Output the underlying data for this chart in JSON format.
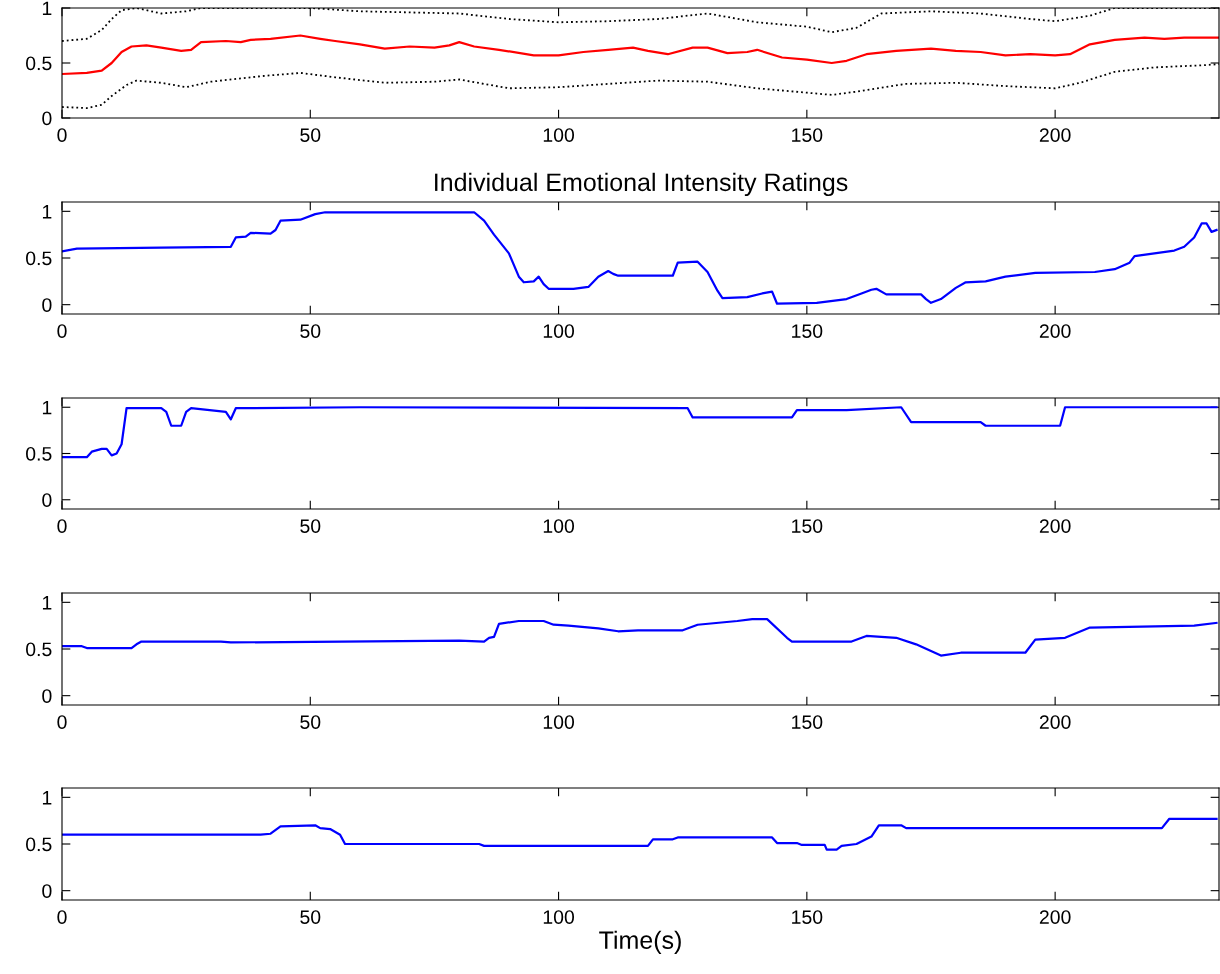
{
  "chart_data": [
    {
      "type": "line",
      "xlim": [
        0,
        233
      ],
      "ylim": [
        0,
        1
      ],
      "xticks": [
        0,
        50,
        100,
        150,
        200
      ],
      "yticks": [
        0,
        0.5,
        1
      ],
      "grid": false,
      "series": [
        {
          "color": "#ff0000",
          "line_style": "solid",
          "x": [
            0,
            5,
            8,
            10,
            12,
            14,
            17,
            20,
            24,
            26,
            28,
            33,
            36,
            38,
            42,
            48,
            52,
            55,
            60,
            65,
            70,
            75,
            78,
            80,
            83,
            88,
            95,
            100,
            105,
            110,
            115,
            118,
            122,
            127,
            130,
            134,
            138,
            140,
            145,
            150,
            155,
            158,
            162,
            168,
            175,
            180,
            185,
            190,
            195,
            200,
            203,
            207,
            212,
            218,
            222,
            226,
            233
          ],
          "values": [
            0.4,
            0.41,
            0.43,
            0.5,
            0.6,
            0.65,
            0.66,
            0.64,
            0.61,
            0.62,
            0.69,
            0.7,
            0.69,
            0.71,
            0.72,
            0.75,
            0.72,
            0.7,
            0.67,
            0.63,
            0.65,
            0.64,
            0.66,
            0.69,
            0.65,
            0.62,
            0.57,
            0.57,
            0.6,
            0.62,
            0.64,
            0.61,
            0.58,
            0.64,
            0.64,
            0.59,
            0.6,
            0.62,
            0.55,
            0.53,
            0.5,
            0.52,
            0.58,
            0.61,
            0.63,
            0.61,
            0.6,
            0.57,
            0.58,
            0.57,
            0.58,
            0.67,
            0.71,
            0.73,
            0.72,
            0.73,
            0.73
          ]
        },
        {
          "color": "#000000",
          "line_style": "dotted",
          "x": [
            0,
            5,
            8,
            10,
            12,
            15,
            20,
            25,
            28,
            50,
            60,
            70,
            80,
            90,
            100,
            110,
            120,
            130,
            140,
            150,
            155,
            160,
            165,
            175,
            185,
            195,
            200,
            207,
            212,
            233
          ],
          "values": [
            0.7,
            0.72,
            0.8,
            0.9,
            0.98,
            1.0,
            0.95,
            0.97,
            1.0,
            1.0,
            0.97,
            0.96,
            0.95,
            0.9,
            0.87,
            0.88,
            0.9,
            0.95,
            0.87,
            0.83,
            0.78,
            0.82,
            0.95,
            0.97,
            0.95,
            0.9,
            0.88,
            0.93,
            1.0,
            1.0
          ]
        },
        {
          "color": "#000000",
          "line_style": "dotted",
          "x": [
            0,
            5,
            8,
            10,
            13,
            15,
            20,
            25,
            30,
            40,
            48,
            55,
            65,
            75,
            80,
            90,
            100,
            110,
            120,
            130,
            140,
            150,
            155,
            160,
            170,
            180,
            190,
            200,
            205,
            212,
            220,
            230,
            233
          ],
          "values": [
            0.1,
            0.09,
            0.12,
            0.2,
            0.3,
            0.34,
            0.32,
            0.28,
            0.33,
            0.38,
            0.41,
            0.37,
            0.32,
            0.33,
            0.35,
            0.27,
            0.28,
            0.31,
            0.34,
            0.33,
            0.27,
            0.23,
            0.21,
            0.24,
            0.31,
            0.32,
            0.29,
            0.27,
            0.32,
            0.42,
            0.46,
            0.48,
            0.49
          ]
        }
      ]
    },
    {
      "type": "line",
      "title": "Individual Emotional Intensity Ratings",
      "xlim": [
        0,
        233
      ],
      "ylim": [
        -0.1,
        1.1
      ],
      "xticks": [
        0,
        50,
        100,
        150,
        200
      ],
      "yticks": [
        0,
        0.5,
        1
      ],
      "grid": false,
      "series": [
        {
          "color": "#0000ff",
          "line_style": "solid",
          "x": [
            0,
            3,
            20,
            34,
            35,
            37,
            38,
            42,
            43,
            44,
            48,
            51,
            53,
            83,
            85,
            87,
            90,
            92,
            93,
            95,
            96,
            97,
            98,
            103,
            106,
            108,
            110,
            111,
            112,
            123,
            124,
            128,
            130,
            132,
            133,
            138,
            141,
            143,
            144,
            152,
            158,
            161,
            163,
            164,
            166,
            173,
            174,
            175,
            177,
            180,
            182,
            186,
            190,
            196,
            208,
            212,
            215,
            216,
            220,
            224,
            226,
            228,
            229.5,
            230.5,
            231.5,
            232.5
          ],
          "values": [
            0.57,
            0.6,
            0.61,
            0.62,
            0.72,
            0.73,
            0.77,
            0.76,
            0.8,
            0.9,
            0.91,
            0.97,
            0.99,
            0.99,
            0.9,
            0.75,
            0.55,
            0.3,
            0.24,
            0.25,
            0.3,
            0.22,
            0.17,
            0.17,
            0.19,
            0.3,
            0.36,
            0.33,
            0.31,
            0.31,
            0.45,
            0.46,
            0.35,
            0.15,
            0.07,
            0.08,
            0.12,
            0.14,
            0.01,
            0.02,
            0.06,
            0.12,
            0.16,
            0.17,
            0.11,
            0.11,
            0.06,
            0.02,
            0.06,
            0.18,
            0.24,
            0.25,
            0.3,
            0.34,
            0.35,
            0.38,
            0.45,
            0.52,
            0.55,
            0.58,
            0.62,
            0.72,
            0.87,
            0.87,
            0.78,
            0.8
          ]
        }
      ]
    },
    {
      "type": "line",
      "xlim": [
        0,
        233
      ],
      "ylim": [
        -0.1,
        1.1
      ],
      "xticks": [
        0,
        50,
        100,
        150,
        200
      ],
      "yticks": [
        0,
        0.5,
        1
      ],
      "grid": false,
      "series": [
        {
          "color": "#0000ff",
          "line_style": "solid",
          "x": [
            0,
            5,
            6,
            8,
            9,
            10,
            11,
            12,
            13,
            20,
            21,
            22,
            24,
            25,
            26,
            33,
            34,
            35,
            60,
            126,
            127,
            147,
            148,
            158,
            169,
            171,
            185,
            186,
            201,
            202,
            232.5
          ],
          "values": [
            0.46,
            0.46,
            0.52,
            0.55,
            0.55,
            0.48,
            0.5,
            0.6,
            0.99,
            0.99,
            0.95,
            0.8,
            0.8,
            0.95,
            0.99,
            0.95,
            0.87,
            0.99,
            1.0,
            0.99,
            0.89,
            0.89,
            0.97,
            0.97,
            1.0,
            0.84,
            0.84,
            0.8,
            0.8,
            1.0,
            1.0
          ]
        }
      ]
    },
    {
      "type": "line",
      "xlim": [
        0,
        233
      ],
      "ylim": [
        -0.1,
        1.1
      ],
      "xticks": [
        0,
        50,
        100,
        150,
        200
      ],
      "yticks": [
        0,
        0.5,
        1
      ],
      "grid": false,
      "series": [
        {
          "color": "#0000ff",
          "line_style": "solid",
          "x": [
            0,
            4,
            5,
            14,
            15,
            16,
            32,
            34,
            80,
            85,
            86,
            87,
            88,
            92,
            97,
            99,
            102,
            108,
            112,
            116,
            125,
            128,
            136,
            139,
            142,
            146,
            147,
            159,
            162,
            168,
            172,
            177,
            181,
            194,
            196,
            202,
            207,
            228,
            232.5
          ],
          "values": [
            0.53,
            0.53,
            0.51,
            0.51,
            0.55,
            0.58,
            0.58,
            0.57,
            0.59,
            0.58,
            0.62,
            0.63,
            0.77,
            0.8,
            0.8,
            0.76,
            0.75,
            0.72,
            0.69,
            0.7,
            0.7,
            0.76,
            0.8,
            0.82,
            0.82,
            0.62,
            0.58,
            0.58,
            0.64,
            0.62,
            0.55,
            0.43,
            0.46,
            0.46,
            0.6,
            0.62,
            0.73,
            0.75,
            0.78
          ]
        }
      ]
    },
    {
      "type": "line",
      "xlabel": "Time(s)",
      "xlim": [
        0,
        233
      ],
      "ylim": [
        -0.1,
        1.1
      ],
      "xticks": [
        0,
        50,
        100,
        150,
        200
      ],
      "yticks": [
        0,
        0.5,
        1
      ],
      "grid": false,
      "series": [
        {
          "color": "#0000ff",
          "line_style": "solid",
          "x": [
            0,
            40,
            42,
            44,
            51,
            52,
            54,
            56,
            57,
            84,
            85,
            118,
            119,
            123,
            124,
            143,
            144,
            148,
            149,
            153.6,
            154,
            156,
            157,
            160,
            163,
            164.5,
            169,
            170,
            221.5,
            223,
            232.5
          ],
          "values": [
            0.6,
            0.6,
            0.61,
            0.69,
            0.7,
            0.67,
            0.66,
            0.6,
            0.5,
            0.5,
            0.48,
            0.48,
            0.55,
            0.55,
            0.57,
            0.57,
            0.51,
            0.51,
            0.49,
            0.49,
            0.44,
            0.44,
            0.48,
            0.5,
            0.58,
            0.7,
            0.7,
            0.67,
            0.67,
            0.77,
            0.77
          ]
        }
      ]
    }
  ]
}
